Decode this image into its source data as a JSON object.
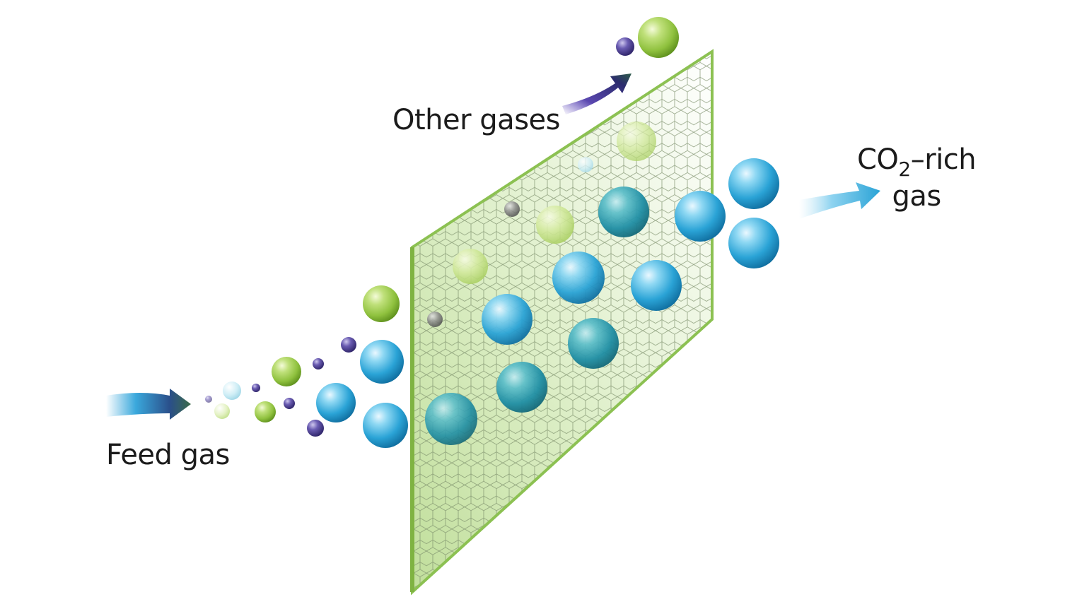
{
  "labels": {
    "feed_gas": "Feed gas",
    "other_gases": "Other gases",
    "co2_prefix": "CO",
    "co2_subscript": "2",
    "co2_suffix": "–rich",
    "co2_line2": "gas"
  },
  "legend_colors": {
    "co2_molecule": "#2aa3d6",
    "other_large_molecule": "#8fc13e",
    "other_small_molecule": "#4b3d8f",
    "membrane": "#8cc152",
    "arrow_dark": "#2c2c6e",
    "arrow_light": "#3aa8dc"
  },
  "icons": {
    "membrane": "hexagonal-membrane-sheet",
    "feed_arrow": "arrow-right-icon",
    "other_arrow": "arrow-up-right-icon",
    "co2_arrow": "arrow-right-icon"
  }
}
